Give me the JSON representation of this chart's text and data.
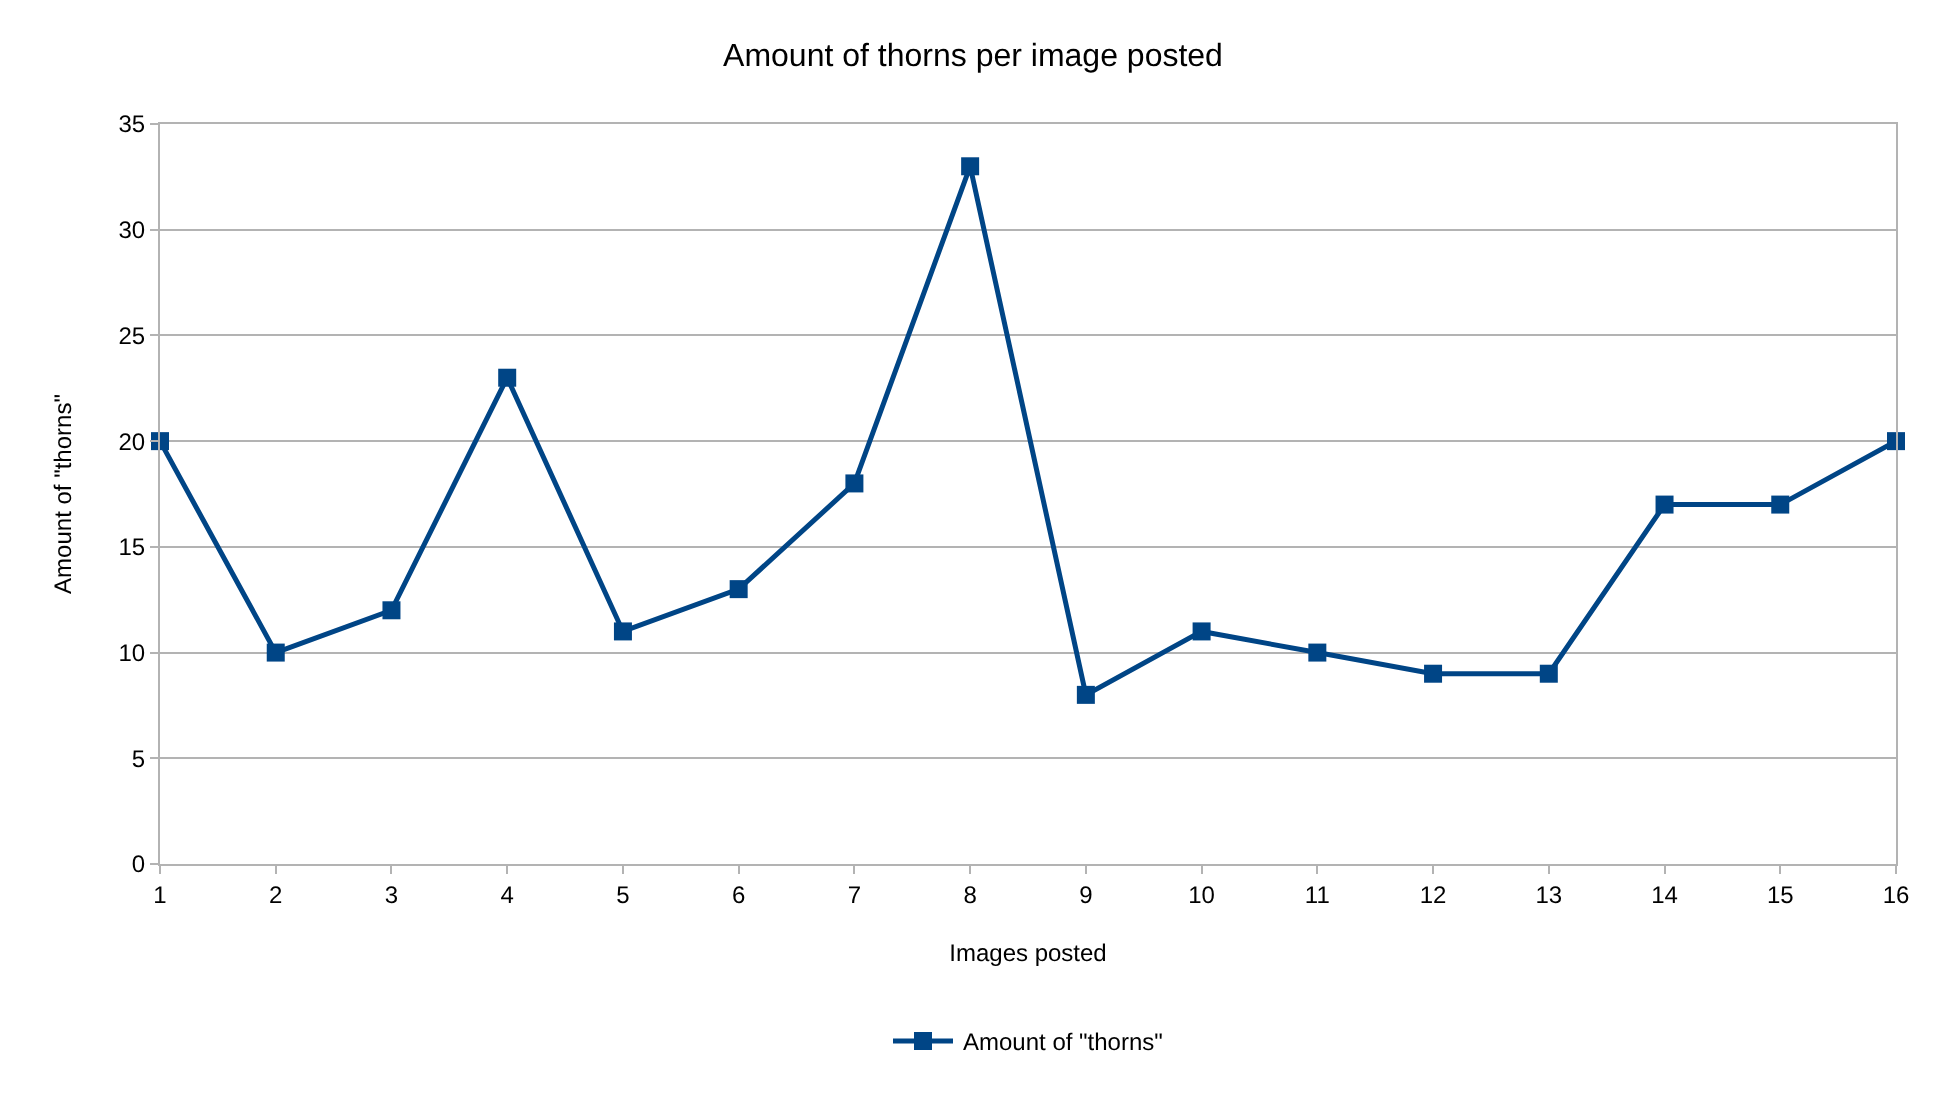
{
  "chart_data": {
    "type": "line",
    "title": "Amount of thorns per image posted",
    "xlabel": "Images posted",
    "ylabel": "Amount of \"thorns\"",
    "x": [
      1,
      2,
      3,
      4,
      5,
      6,
      7,
      8,
      9,
      10,
      11,
      12,
      13,
      14,
      15,
      16
    ],
    "series": [
      {
        "name": "Amount of \"thorns\"",
        "color": "#004586",
        "values": [
          20,
          10,
          12,
          23,
          11,
          13,
          18,
          33,
          8,
          11,
          10,
          9,
          9,
          17,
          17,
          20
        ]
      }
    ],
    "xlim": [
      1,
      16
    ],
    "xticks": [
      1,
      2,
      3,
      4,
      5,
      6,
      7,
      8,
      9,
      10,
      11,
      12,
      13,
      14,
      15,
      16
    ],
    "ylim": [
      0,
      35
    ],
    "yticks": [
      0,
      5,
      10,
      15,
      20,
      25,
      30,
      35
    ],
    "grid": "y",
    "legend": "bottom",
    "marker": "square",
    "line_style": "solid"
  }
}
